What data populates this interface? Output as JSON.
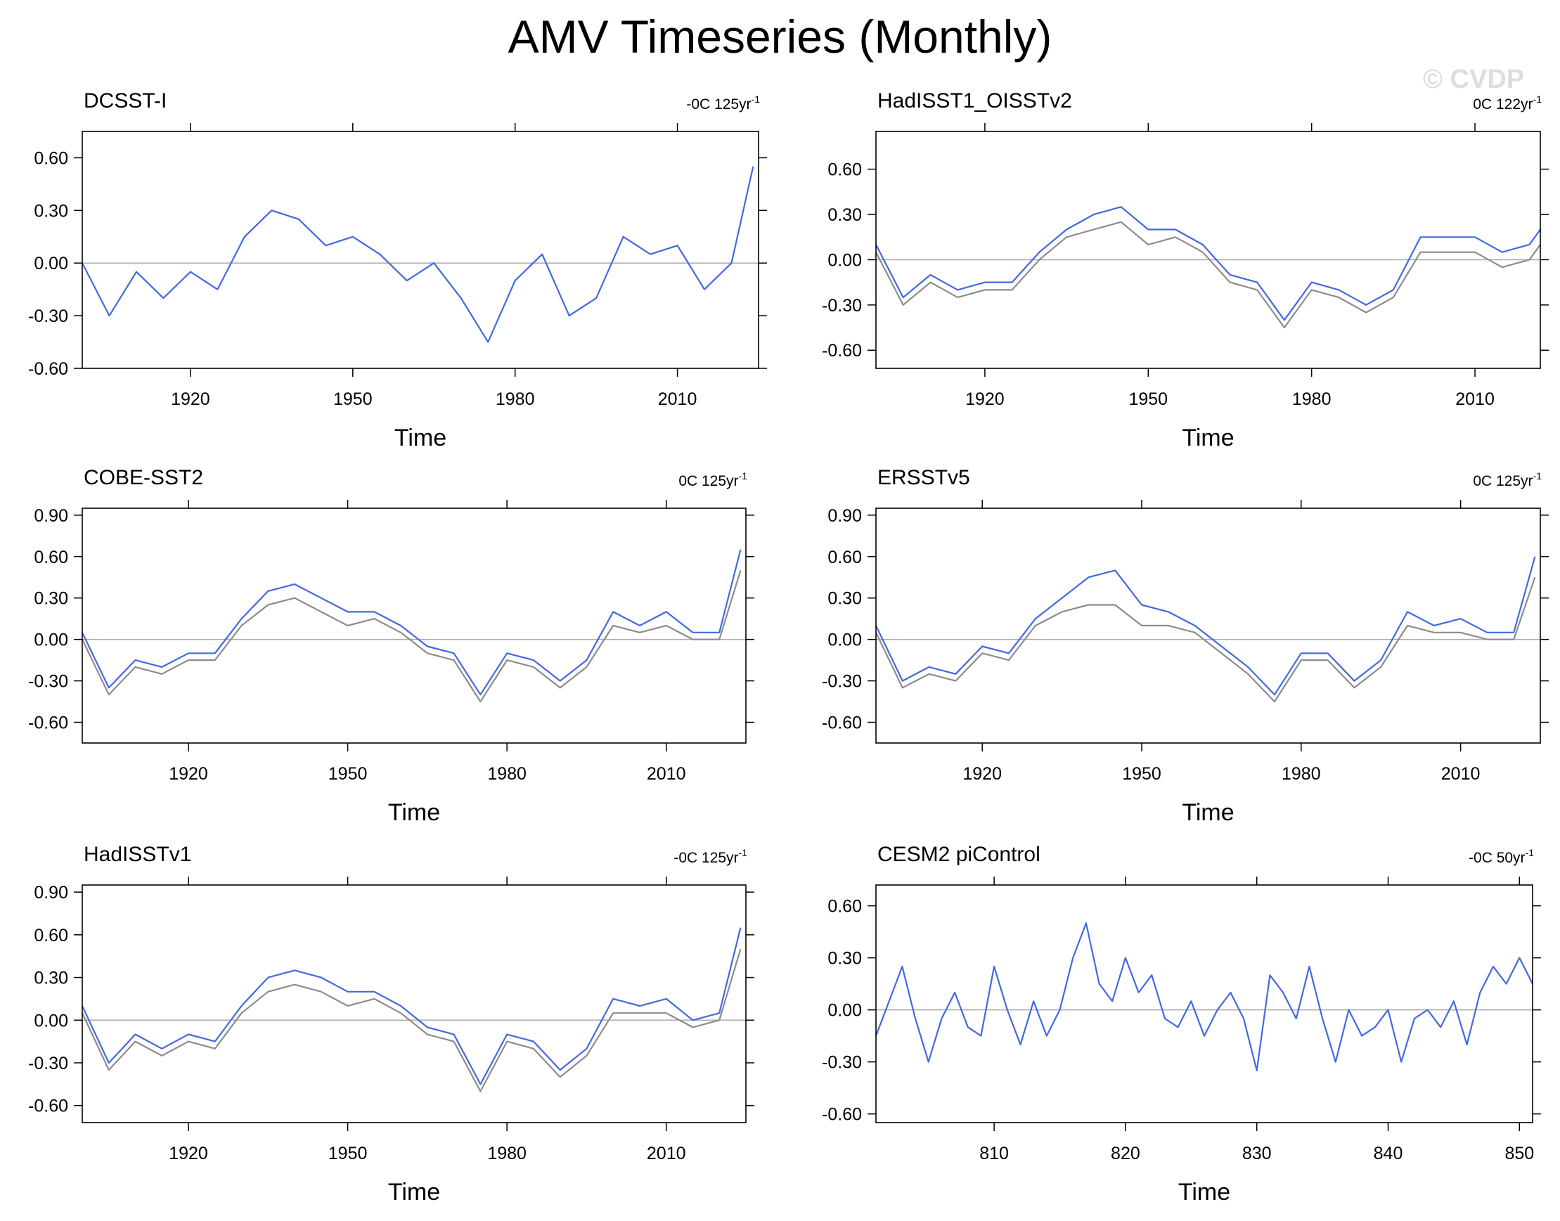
{
  "figure": {
    "title": "AMV Timeseries (Monthly)",
    "watermark": "© CVDP"
  },
  "colors": {
    "primary_line": "#4169e1",
    "reference_line": "#8c8c8c",
    "zero_line": "#aaaaaa",
    "axis": "#000000"
  },
  "chart_data": [
    {
      "type": "line",
      "title": "DCSST-I",
      "trend_label": "-0C 125yr",
      "trend_unit_sup": "-1",
      "xlabel": "Time",
      "ylabel": "",
      "xlim": [
        1900,
        2025
      ],
      "ylim": [
        -0.6,
        0.75
      ],
      "xticks": [
        1920,
        1950,
        1980,
        2010
      ],
      "yticks": [
        0.6,
        0.3,
        0.0,
        -0.3,
        -0.6
      ],
      "ytick_labels": [
        "0.60",
        "0.30",
        "0.00",
        "-0.30",
        "-0.60"
      ],
      "series": [
        {
          "name": "DCSST-I",
          "role": "primary",
          "x": [
            1900,
            1905,
            1910,
            1915,
            1920,
            1925,
            1930,
            1935,
            1940,
            1945,
            1950,
            1955,
            1960,
            1965,
            1970,
            1975,
            1980,
            1985,
            1990,
            1995,
            2000,
            2005,
            2010,
            2015,
            2020,
            2024
          ],
          "values": [
            0.0,
            -0.3,
            -0.05,
            -0.2,
            -0.05,
            -0.15,
            0.15,
            0.3,
            0.25,
            0.1,
            0.15,
            0.05,
            -0.1,
            0.0,
            -0.2,
            -0.45,
            -0.1,
            0.05,
            -0.3,
            -0.2,
            0.15,
            0.05,
            0.1,
            -0.15,
            0.0,
            0.55
          ]
        }
      ]
    },
    {
      "type": "line",
      "title": "HadISST1_OISSTv2",
      "trend_label": "0C 122yr",
      "trend_unit_sup": "-1",
      "xlabel": "Time",
      "ylabel": "",
      "xlim": [
        1900,
        2022
      ],
      "ylim": [
        -0.72,
        0.85
      ],
      "xticks": [
        1920,
        1950,
        1980,
        2010
      ],
      "yticks": [
        0.6,
        0.3,
        0.0,
        -0.3,
        -0.6
      ],
      "ytick_labels": [
        "0.60",
        "0.30",
        "0.00",
        "-0.30",
        "-0.60"
      ],
      "series": [
        {
          "name": "HadISST1_OISSTv2",
          "role": "primary",
          "x": [
            1900,
            1905,
            1910,
            1915,
            1920,
            1925,
            1930,
            1935,
            1940,
            1945,
            1950,
            1955,
            1960,
            1965,
            1970,
            1975,
            1980,
            1985,
            1990,
            1995,
            2000,
            2005,
            2010,
            2015,
            2020,
            2022
          ],
          "values": [
            0.1,
            -0.25,
            -0.1,
            -0.2,
            -0.15,
            -0.15,
            0.05,
            0.2,
            0.3,
            0.35,
            0.2,
            0.2,
            0.1,
            -0.1,
            -0.15,
            -0.4,
            -0.15,
            -0.2,
            -0.3,
            -0.2,
            0.15,
            0.15,
            0.15,
            0.05,
            0.1,
            0.2
          ]
        },
        {
          "name": "reference",
          "role": "reference",
          "x": [
            1900,
            1905,
            1910,
            1915,
            1920,
            1925,
            1930,
            1935,
            1940,
            1945,
            1950,
            1955,
            1960,
            1965,
            1970,
            1975,
            1980,
            1985,
            1990,
            1995,
            2000,
            2005,
            2010,
            2015,
            2020,
            2022
          ],
          "values": [
            0.05,
            -0.3,
            -0.15,
            -0.25,
            -0.2,
            -0.2,
            0.0,
            0.15,
            0.2,
            0.25,
            0.1,
            0.15,
            0.05,
            -0.15,
            -0.2,
            -0.45,
            -0.2,
            -0.25,
            -0.35,
            -0.25,
            0.05,
            0.05,
            0.05,
            -0.05,
            0.0,
            0.1
          ]
        }
      ]
    },
    {
      "type": "line",
      "title": "COBE-SST2",
      "trend_label": "0C 125yr",
      "trend_unit_sup": "-1",
      "xlabel": "Time",
      "ylabel": "",
      "xlim": [
        1900,
        2025
      ],
      "ylim": [
        -0.75,
        0.95
      ],
      "xticks": [
        1920,
        1950,
        1980,
        2010
      ],
      "yticks": [
        0.9,
        0.6,
        0.3,
        0.0,
        -0.3,
        -0.6
      ],
      "ytick_labels": [
        "0.90",
        "0.60",
        "0.30",
        "0.00",
        "-0.30",
        "-0.60"
      ],
      "series": [
        {
          "name": "COBE-SST2",
          "role": "primary",
          "x": [
            1900,
            1905,
            1910,
            1915,
            1920,
            1925,
            1930,
            1935,
            1940,
            1945,
            1950,
            1955,
            1960,
            1965,
            1970,
            1975,
            1980,
            1985,
            1990,
            1995,
            2000,
            2005,
            2010,
            2015,
            2020,
            2024
          ],
          "values": [
            0.05,
            -0.35,
            -0.15,
            -0.2,
            -0.1,
            -0.1,
            0.15,
            0.35,
            0.4,
            0.3,
            0.2,
            0.2,
            0.1,
            -0.05,
            -0.1,
            -0.4,
            -0.1,
            -0.15,
            -0.3,
            -0.15,
            0.2,
            0.1,
            0.2,
            0.05,
            0.05,
            0.65
          ]
        },
        {
          "name": "reference",
          "role": "reference",
          "x": [
            1900,
            1905,
            1910,
            1915,
            1920,
            1925,
            1930,
            1935,
            1940,
            1945,
            1950,
            1955,
            1960,
            1965,
            1970,
            1975,
            1980,
            1985,
            1990,
            1995,
            2000,
            2005,
            2010,
            2015,
            2020,
            2024
          ],
          "values": [
            0.0,
            -0.4,
            -0.2,
            -0.25,
            -0.15,
            -0.15,
            0.1,
            0.25,
            0.3,
            0.2,
            0.1,
            0.15,
            0.05,
            -0.1,
            -0.15,
            -0.45,
            -0.15,
            -0.2,
            -0.35,
            -0.2,
            0.1,
            0.05,
            0.1,
            0.0,
            0.0,
            0.5
          ]
        }
      ]
    },
    {
      "type": "line",
      "title": "ERSSTv5",
      "trend_label": "0C 125yr",
      "trend_unit_sup": "-1",
      "xlabel": "Time",
      "ylabel": "",
      "xlim": [
        1900,
        2025
      ],
      "ylim": [
        -0.75,
        0.95
      ],
      "xticks": [
        1920,
        1950,
        1980,
        2010
      ],
      "yticks": [
        0.9,
        0.6,
        0.3,
        0.0,
        -0.3,
        -0.6
      ],
      "ytick_labels": [
        "0.90",
        "0.60",
        "0.30",
        "0.00",
        "-0.30",
        "-0.60"
      ],
      "series": [
        {
          "name": "ERSSTv5",
          "role": "primary",
          "x": [
            1900,
            1905,
            1910,
            1915,
            1920,
            1925,
            1930,
            1935,
            1940,
            1945,
            1950,
            1955,
            1960,
            1965,
            1970,
            1975,
            1980,
            1985,
            1990,
            1995,
            2000,
            2005,
            2010,
            2015,
            2020,
            2024
          ],
          "values": [
            0.1,
            -0.3,
            -0.2,
            -0.25,
            -0.05,
            -0.1,
            0.15,
            0.3,
            0.45,
            0.5,
            0.25,
            0.2,
            0.1,
            -0.05,
            -0.2,
            -0.4,
            -0.1,
            -0.1,
            -0.3,
            -0.15,
            0.2,
            0.1,
            0.15,
            0.05,
            0.05,
            0.6
          ]
        },
        {
          "name": "reference",
          "role": "reference",
          "x": [
            1900,
            1905,
            1910,
            1915,
            1920,
            1925,
            1930,
            1935,
            1940,
            1945,
            1950,
            1955,
            1960,
            1965,
            1970,
            1975,
            1980,
            1985,
            1990,
            1995,
            2000,
            2005,
            2010,
            2015,
            2020,
            2024
          ],
          "values": [
            0.05,
            -0.35,
            -0.25,
            -0.3,
            -0.1,
            -0.15,
            0.1,
            0.2,
            0.25,
            0.25,
            0.1,
            0.1,
            0.05,
            -0.1,
            -0.25,
            -0.45,
            -0.15,
            -0.15,
            -0.35,
            -0.2,
            0.1,
            0.05,
            0.05,
            0.0,
            0.0,
            0.45
          ]
        }
      ]
    },
    {
      "type": "line",
      "title": "HadISSTv1",
      "trend_label": "-0C 125yr",
      "trend_unit_sup": "-1",
      "xlabel": "Time",
      "ylabel": "",
      "xlim": [
        1900,
        2025
      ],
      "ylim": [
        -0.72,
        0.95
      ],
      "xticks": [
        1920,
        1950,
        1980,
        2010
      ],
      "yticks": [
        0.9,
        0.6,
        0.3,
        0.0,
        -0.3,
        -0.6
      ],
      "ytick_labels": [
        "0.90",
        "0.60",
        "0.30",
        "0.00",
        "-0.30",
        "-0.60"
      ],
      "series": [
        {
          "name": "HadISSTv1",
          "role": "primary",
          "x": [
            1900,
            1905,
            1910,
            1915,
            1920,
            1925,
            1930,
            1935,
            1940,
            1945,
            1950,
            1955,
            1960,
            1965,
            1970,
            1975,
            1980,
            1985,
            1990,
            1995,
            2000,
            2005,
            2010,
            2015,
            2020,
            2024
          ],
          "values": [
            0.1,
            -0.3,
            -0.1,
            -0.2,
            -0.1,
            -0.15,
            0.1,
            0.3,
            0.35,
            0.3,
            0.2,
            0.2,
            0.1,
            -0.05,
            -0.1,
            -0.45,
            -0.1,
            -0.15,
            -0.35,
            -0.2,
            0.15,
            0.1,
            0.15,
            0.0,
            0.05,
            0.65
          ]
        },
        {
          "name": "reference",
          "role": "reference",
          "x": [
            1900,
            1905,
            1910,
            1915,
            1920,
            1925,
            1930,
            1935,
            1940,
            1945,
            1950,
            1955,
            1960,
            1965,
            1970,
            1975,
            1980,
            1985,
            1990,
            1995,
            2000,
            2005,
            2010,
            2015,
            2020,
            2024
          ],
          "values": [
            0.05,
            -0.35,
            -0.15,
            -0.25,
            -0.15,
            -0.2,
            0.05,
            0.2,
            0.25,
            0.2,
            0.1,
            0.15,
            0.05,
            -0.1,
            -0.15,
            -0.5,
            -0.15,
            -0.2,
            -0.4,
            -0.25,
            0.05,
            0.05,
            0.05,
            -0.05,
            0.0,
            0.5
          ]
        }
      ]
    },
    {
      "type": "line",
      "title": "CESM2 piControl",
      "trend_label": "-0C 50yr",
      "trend_unit_sup": "-1",
      "xlabel": "Time",
      "ylabel": "",
      "xlim": [
        801,
        851
      ],
      "ylim": [
        -0.65,
        0.72
      ],
      "xticks": [
        810,
        820,
        830,
        840,
        850
      ],
      "yticks": [
        0.6,
        0.3,
        0.0,
        -0.3,
        -0.6
      ],
      "ytick_labels": [
        "0.60",
        "0.30",
        "0.00",
        "-0.30",
        "-0.60"
      ],
      "series": [
        {
          "name": "CESM2 piControl",
          "role": "primary",
          "x": [
            801,
            802,
            803,
            804,
            805,
            806,
            807,
            808,
            809,
            810,
            811,
            812,
            813,
            814,
            815,
            816,
            817,
            818,
            819,
            820,
            821,
            822,
            823,
            824,
            825,
            826,
            827,
            828,
            829,
            830,
            831,
            832,
            833,
            834,
            835,
            836,
            837,
            838,
            839,
            840,
            841,
            842,
            843,
            844,
            845,
            846,
            847,
            848,
            849,
            850,
            851
          ],
          "values": [
            -0.15,
            0.05,
            0.25,
            -0.05,
            -0.3,
            -0.05,
            0.1,
            -0.1,
            -0.15,
            0.25,
            0.0,
            -0.2,
            0.05,
            -0.15,
            0.0,
            0.3,
            0.5,
            0.15,
            0.05,
            0.3,
            0.1,
            0.2,
            -0.05,
            -0.1,
            0.05,
            -0.15,
            0.0,
            0.1,
            -0.05,
            -0.35,
            0.2,
            0.1,
            -0.05,
            0.25,
            -0.05,
            -0.3,
            0.0,
            -0.15,
            -0.1,
            0.0,
            -0.3,
            -0.05,
            0.0,
            -0.1,
            0.05,
            -0.2,
            0.1,
            0.25,
            0.15,
            0.3,
            0.15
          ]
        }
      ]
    }
  ]
}
